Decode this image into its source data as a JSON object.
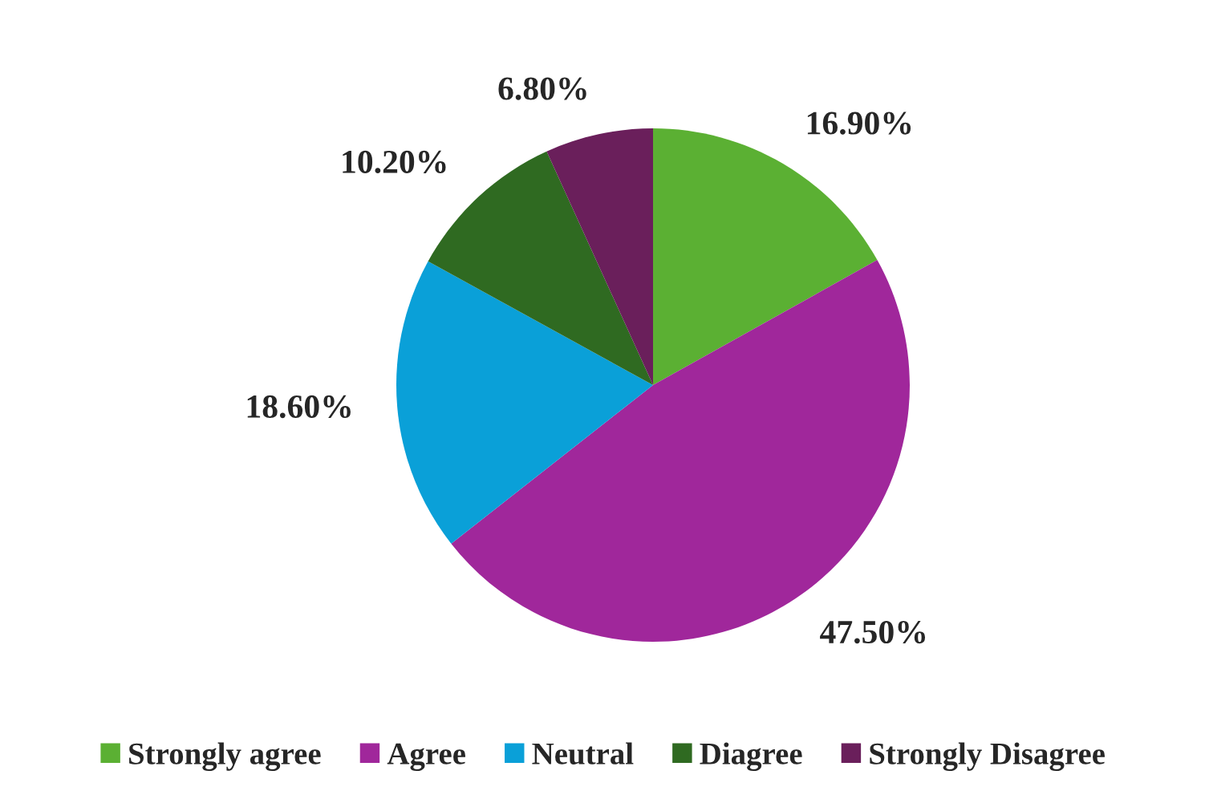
{
  "chart_data": {
    "type": "pie",
    "categories": [
      "Strongly agree",
      "Agree",
      "Neutral",
      "Diagree",
      "Strongly Disagree"
    ],
    "values": [
      16.9,
      47.5,
      18.6,
      10.2,
      6.8
    ],
    "colors": [
      "#5bb033",
      "#a0279b",
      "#0aa0d8",
      "#2f6a21",
      "#6a1f5b"
    ],
    "value_labels": [
      "16.90%",
      "47.50%",
      "18.60%",
      "10.20%",
      "6.80%"
    ],
    "legend": "bottom"
  }
}
